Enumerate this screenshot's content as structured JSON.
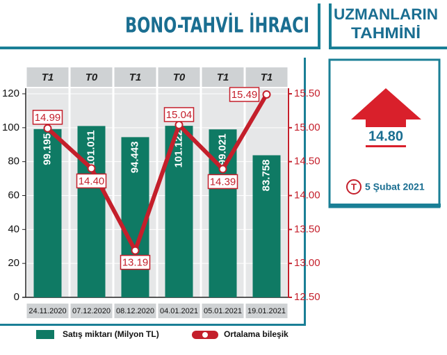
{
  "chart_data": {
    "type": "bar",
    "title": "BONO-TAHVİL İHRACI",
    "categories": [
      "24.11.2020",
      "07.12.2020",
      "08.12.2020",
      "04.01.2021",
      "05.01.2021",
      "19.01.2021"
    ],
    "top_labels": [
      "T1",
      "T0",
      "T1",
      "T0",
      "T1",
      "T1"
    ],
    "series": [
      {
        "name": "Satış miktarı (Milyon TL)",
        "type": "bar",
        "color": "#0f7a64",
        "values": [
          99.195,
          101.011,
          94.443,
          101.122,
          99.021,
          83.758
        ]
      },
      {
        "name": "Ortalama bileşik",
        "type": "line",
        "axis": "y2",
        "color": "#c41f2b",
        "values": [
          14.99,
          14.4,
          13.19,
          15.04,
          14.39,
          15.49
        ],
        "value_labels": [
          "14.99",
          "14.40",
          "13.19",
          "15.04",
          "14.39",
          "15.49"
        ]
      }
    ],
    "ylim": [
      0,
      120
    ],
    "yticks": [
      0,
      20,
      40,
      60,
      80,
      100,
      120
    ],
    "y2lim": [
      12.5,
      15.5
    ],
    "y2ticks": [
      {
        "value": 12.5,
        "label": "12.50"
      },
      {
        "value": 13,
        "label": "13.00"
      },
      {
        "value": 13.5,
        "label": "13.50"
      },
      {
        "value": 14,
        "label": "14.00"
      },
      {
        "value": 14.5,
        "label": "14.50"
      },
      {
        "value": 15,
        "label": "15.00"
      },
      {
        "value": 15.5,
        "label": "15.50"
      }
    ]
  },
  "forecast": {
    "title": [
      "UZMANLARIN",
      "TAHMİNİ"
    ],
    "value": "14.80",
    "logo": "T",
    "date": "5 Şubat 2021"
  }
}
